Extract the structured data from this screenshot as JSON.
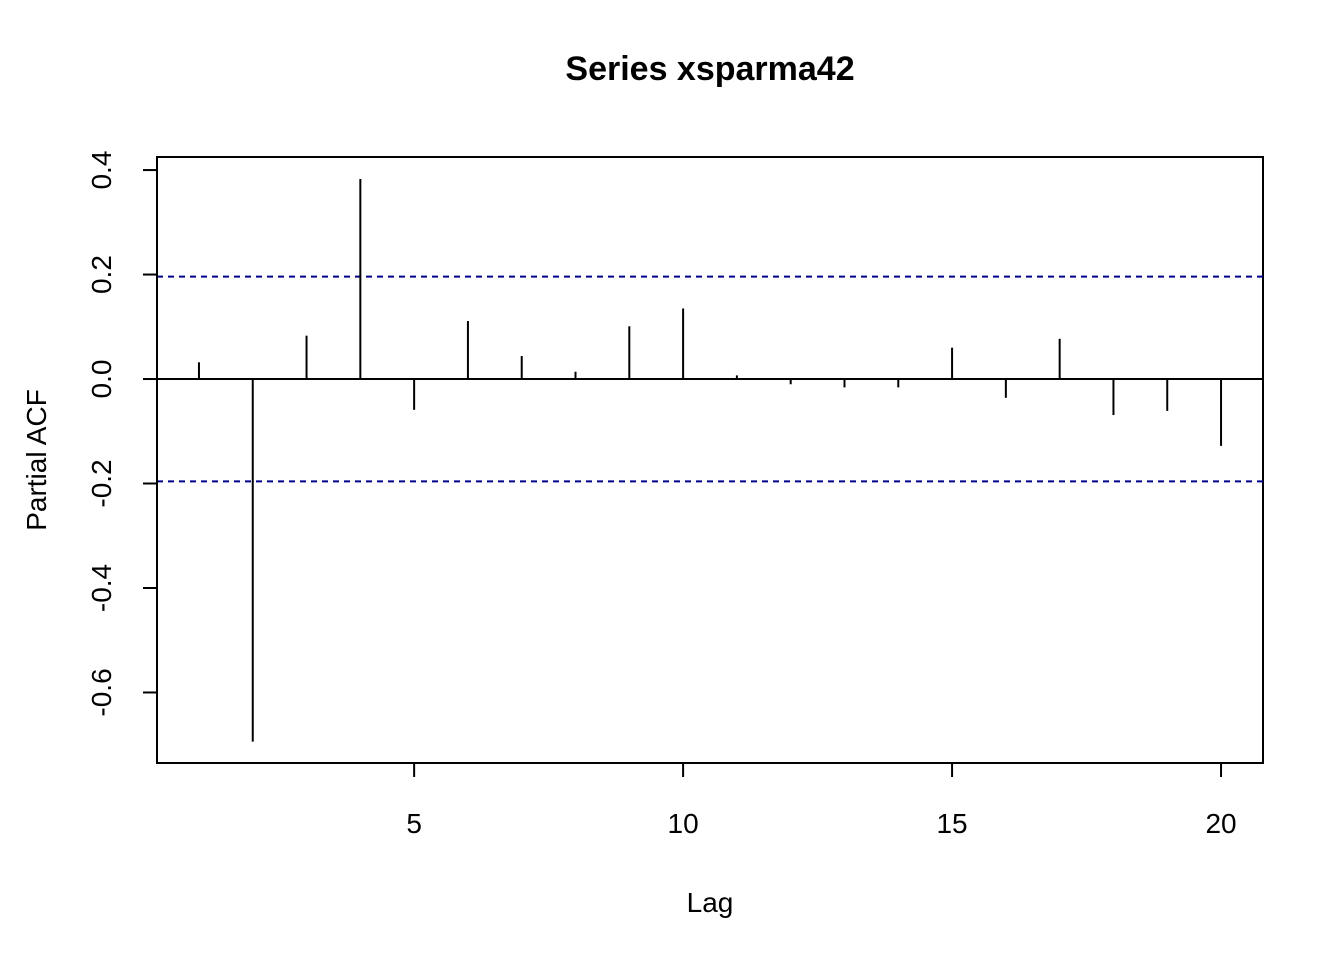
{
  "chart_data": {
    "type": "bar",
    "title": "Series  xsparma42",
    "xlabel": "Lag",
    "ylabel": "Partial ACF",
    "xlim": [
      0.22,
      20.78
    ],
    "ylim": [
      -0.735,
      0.425
    ],
    "x_ticks": [
      5,
      10,
      15,
      20
    ],
    "y_ticks": [
      -0.6,
      -0.4,
      -0.2,
      0.0,
      0.2,
      0.4
    ],
    "y_tick_labels": [
      "-0.6",
      "-0.4",
      "-0.2",
      "0.0",
      "0.2",
      "0.4"
    ],
    "grid": false,
    "confidence_limit": 0.196,
    "confidence_color": "#00008B",
    "series": [
      {
        "x": [
          1,
          2,
          3,
          4,
          5,
          6,
          7,
          8,
          9,
          10,
          11,
          12,
          13,
          14,
          15,
          16,
          17,
          18,
          19,
          20
        ],
        "values": [
          0.032,
          -0.694,
          0.083,
          0.383,
          -0.059,
          0.111,
          0.044,
          0.014,
          0.101,
          0.135,
          0.007,
          -0.01,
          -0.016,
          -0.016,
          0.06,
          -0.036,
          0.077,
          -0.069,
          -0.061,
          -0.128
        ]
      }
    ]
  }
}
